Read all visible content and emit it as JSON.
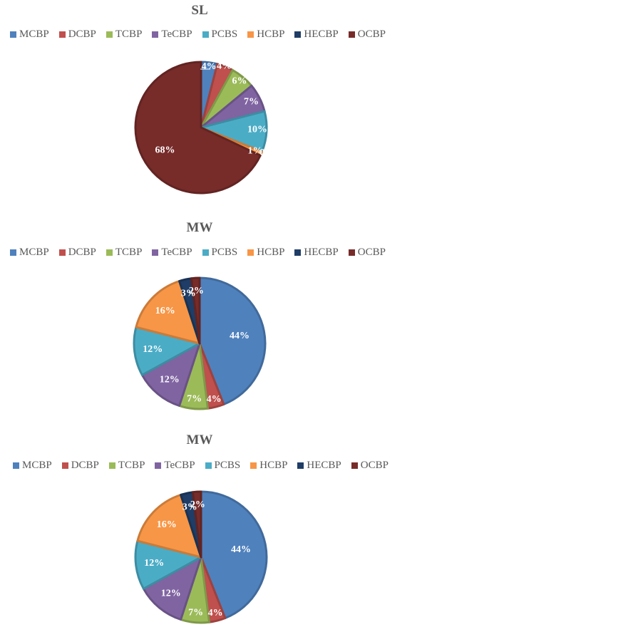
{
  "chart_data": [
    {
      "type": "pie",
      "title": "SL",
      "categories": [
        "MCBP",
        "DCBP",
        "TCBP",
        "TeCBP",
        "PCBS",
        "HCBP",
        "HECBP",
        "OCBP"
      ],
      "values": [
        4,
        4,
        6,
        7,
        10,
        1,
        0,
        68
      ],
      "data_labels": [
        "4%",
        "4%",
        "6%",
        "7%",
        "10%",
        "1%",
        "0%",
        "68%"
      ],
      "legend_position": "top"
    },
    {
      "type": "pie",
      "title": "MW",
      "categories": [
        "MCBP",
        "DCBP",
        "TCBP",
        "TeCBP",
        "PCBS",
        "HCBP",
        "HECBP",
        "OCBP"
      ],
      "values": [
        44,
        4,
        7,
        12,
        12,
        16,
        3,
        2
      ],
      "data_labels": [
        "44%",
        "4%",
        "7%",
        "12%",
        "12%",
        "16%",
        "3%",
        "2%"
      ],
      "legend_position": "top"
    },
    {
      "type": "pie",
      "title": "MW",
      "categories": [
        "MCBP",
        "DCBP",
        "TCBP",
        "TeCBP",
        "PCBS",
        "HCBP",
        "HECBP",
        "OCBP"
      ],
      "values": [
        44,
        4,
        7,
        12,
        12,
        16,
        3,
        2
      ],
      "data_labels": [
        "44%",
        "4%",
        "7%",
        "12%",
        "12%",
        "16%",
        "3%",
        "2%"
      ],
      "legend_position": "top"
    }
  ],
  "colors": [
    "#4F81BD",
    "#C0504D",
    "#9BBB59",
    "#8064A2",
    "#4BACC6",
    "#F79646",
    "#1F3D66",
    "#772C2A"
  ]
}
